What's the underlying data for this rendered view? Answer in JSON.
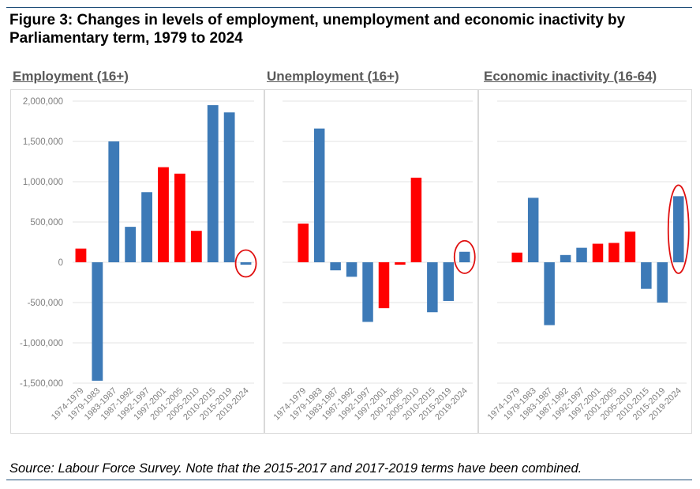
{
  "figure_title": "Figure 3: Changes in levels of employment, unemployment and economic inactivity by Parliamentary term, 1979 to 2024",
  "source_note": "Source: Labour Force Survey. Note that the 2015-2017 and 2017-2019 terms have been combined.",
  "colors": {
    "blue": "#3d7ab7",
    "red": "#ff0000",
    "highlight_circle": "#e01010",
    "grid": "#e3e3e3",
    "tick_text": "#7f7f7f"
  },
  "chart_data": [
    {
      "type": "bar",
      "title": "Employment (16+)",
      "categories": [
        "1974-1979",
        "1979-1983",
        "1983-1987",
        "1987-1992",
        "1992-1997",
        "1997-2001",
        "2001-2005",
        "2005-2010",
        "2010-2015",
        "2015-2019",
        "2019-2024"
      ],
      "values": [
        170000,
        -1470000,
        1500000,
        440000,
        870000,
        1180000,
        1100000,
        390000,
        1950000,
        1860000,
        -30000
      ],
      "bar_colors": [
        "red",
        "blue",
        "blue",
        "blue",
        "blue",
        "red",
        "red",
        "red",
        "blue",
        "blue",
        "blue"
      ],
      "ylim": [
        -1500000,
        2000000
      ],
      "yticks": [
        2000000,
        1500000,
        1000000,
        500000,
        0,
        -500000,
        -1000000,
        -1500000
      ],
      "ytick_labels": [
        "2,000,000",
        "1,500,000",
        "1,000,000",
        "500,000",
        "0",
        "-500,000",
        "-1,000,000",
        "-1,500,000"
      ],
      "grid": true,
      "highlighted_category": "2019-2024"
    },
    {
      "type": "bar",
      "title": "Unemployment (16+)",
      "categories": [
        "1974-1979",
        "1979-1983",
        "1983-1987",
        "1987-1992",
        "1992-1997",
        "1997-2001",
        "2001-2005",
        "2005-2010",
        "2010-2015",
        "2015-2019",
        "2019-2024"
      ],
      "values": [
        480000,
        1660000,
        -100000,
        -180000,
        -740000,
        -570000,
        -30000,
        1050000,
        -620000,
        -480000,
        130000
      ],
      "bar_colors": [
        "red",
        "blue",
        "blue",
        "blue",
        "blue",
        "red",
        "red",
        "red",
        "blue",
        "blue",
        "blue"
      ],
      "ylim": [
        -1500000,
        2000000
      ],
      "grid": true,
      "highlighted_category": "2019-2024"
    },
    {
      "type": "bar",
      "title": "Economic inactivity (16-64)",
      "categories": [
        "1974-1979",
        "1979-1983",
        "1983-1987",
        "1987-1992",
        "1992-1997",
        "1997-2001",
        "2001-2005",
        "2005-2010",
        "2010-2015",
        "2015-2019",
        "2019-2024"
      ],
      "values": [
        120000,
        800000,
        -780000,
        90000,
        180000,
        230000,
        240000,
        380000,
        -330000,
        -500000,
        820000
      ],
      "bar_colors": [
        "red",
        "blue",
        "blue",
        "blue",
        "blue",
        "red",
        "red",
        "red",
        "blue",
        "blue",
        "blue"
      ],
      "ylim": [
        -1500000,
        2000000
      ],
      "grid": true,
      "highlighted_category": "2019-2024"
    }
  ]
}
